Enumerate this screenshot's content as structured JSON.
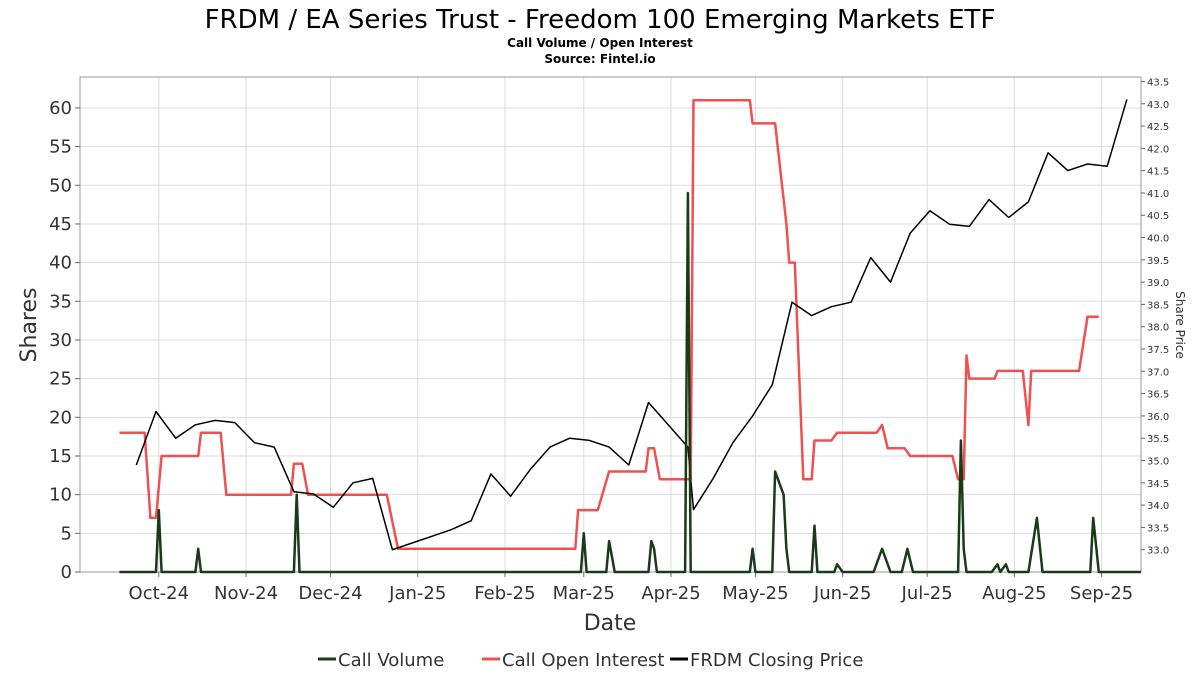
{
  "chart_data": {
    "type": "line",
    "title": "FRDM / EA Series Trust - Freedom 100 Emerging Markets ETF",
    "subtitle": "Call Volume / Open Interest",
    "source": "Source: Fintel.io",
    "xlabel": "Date",
    "ylabel": "Shares",
    "y2label": "Share Price",
    "x_tick_labels": [
      "Oct-24",
      "Nov-24",
      "Dec-24",
      "Jan-25",
      "Feb-25",
      "Mar-25",
      "Apr-25",
      "May-25",
      "Jun-25",
      "Jul-25",
      "Aug-25",
      "Sep-25"
    ],
    "x_tick_days": [
      14,
      45,
      75,
      106,
      137,
      165,
      196,
      226,
      257,
      287,
      318,
      349
    ],
    "x_range_days": [
      -14,
      363
    ],
    "ylim": [
      0,
      64
    ],
    "y_ticks": [
      0,
      5,
      10,
      15,
      20,
      25,
      30,
      35,
      40,
      45,
      50,
      55,
      60
    ],
    "y2lim": [
      32.5,
      43.6
    ],
    "y2_ticks": [
      "33.0",
      "33.5",
      "34.0",
      "34.5",
      "35.0",
      "35.5",
      "36.0",
      "36.5",
      "37.0",
      "37.5",
      "38.0",
      "38.5",
      "39.0",
      "39.5",
      "40.0",
      "40.5",
      "41.0",
      "41.5",
      "42.0",
      "42.5",
      "43.0",
      "43.5"
    ],
    "grid": true,
    "legend_position": "bottom",
    "series": [
      {
        "name": "Call Volume",
        "color": "#1a3a1a",
        "axis": "left",
        "points": [
          [
            0,
            0
          ],
          [
            13,
            0
          ],
          [
            14,
            8
          ],
          [
            15,
            0
          ],
          [
            27,
            0
          ],
          [
            28,
            3
          ],
          [
            29,
            0
          ],
          [
            62,
            0
          ],
          [
            63,
            10
          ],
          [
            64,
            0
          ],
          [
            164,
            0
          ],
          [
            165,
            5
          ],
          [
            166,
            0
          ],
          [
            173,
            0
          ],
          [
            174,
            4
          ],
          [
            176,
            0
          ],
          [
            188,
            0
          ],
          [
            189,
            4
          ],
          [
            190,
            3
          ],
          [
            191,
            0
          ],
          [
            201,
            0
          ],
          [
            202,
            49
          ],
          [
            203,
            0
          ],
          [
            224,
            0
          ],
          [
            225,
            3
          ],
          [
            226,
            0
          ],
          [
            232,
            0
          ],
          [
            233,
            13
          ],
          [
            236,
            10
          ],
          [
            237,
            3
          ],
          [
            238,
            0
          ],
          [
            246,
            0
          ],
          [
            247,
            6
          ],
          [
            248,
            0
          ],
          [
            254,
            0
          ],
          [
            255,
            1
          ],
          [
            257,
            0
          ],
          [
            268,
            0
          ],
          [
            271,
            3
          ],
          [
            274,
            0
          ],
          [
            278,
            0
          ],
          [
            280,
            3
          ],
          [
            282,
            0
          ],
          [
            298,
            0
          ],
          [
            299,
            17
          ],
          [
            300,
            3
          ],
          [
            301,
            0
          ],
          [
            310,
            0
          ],
          [
            312,
            1
          ],
          [
            313,
            0
          ],
          [
            315,
            1
          ],
          [
            316,
            0
          ],
          [
            320,
            0
          ],
          [
            323,
            0
          ],
          [
            326,
            7
          ],
          [
            328,
            0
          ],
          [
            345,
            0
          ],
          [
            346,
            7
          ],
          [
            348,
            0
          ],
          [
            363,
            0
          ]
        ]
      },
      {
        "name": "Call Open Interest",
        "color": "#f05050",
        "axis": "left",
        "points": [
          [
            0,
            18
          ],
          [
            9,
            18
          ],
          [
            11,
            7
          ],
          [
            13,
            7
          ],
          [
            15,
            15
          ],
          [
            28,
            15
          ],
          [
            29,
            18
          ],
          [
            36,
            18
          ],
          [
            38,
            10
          ],
          [
            61,
            10
          ],
          [
            62,
            14
          ],
          [
            65,
            14
          ],
          [
            67,
            10
          ],
          [
            95,
            10
          ],
          [
            99,
            3
          ],
          [
            162,
            3
          ],
          [
            163,
            8
          ],
          [
            170,
            8
          ],
          [
            174,
            13
          ],
          [
            187,
            13
          ],
          [
            188,
            16
          ],
          [
            190,
            16
          ],
          [
            192,
            12
          ],
          [
            203,
            12
          ],
          [
            204,
            61
          ],
          [
            224,
            61
          ],
          [
            225,
            58
          ],
          [
            233,
            58
          ],
          [
            237,
            45
          ],
          [
            238,
            40
          ],
          [
            240,
            40
          ],
          [
            243,
            12
          ],
          [
            246,
            12
          ],
          [
            247,
            17
          ],
          [
            253,
            17
          ],
          [
            255,
            18
          ],
          [
            269,
            18
          ],
          [
            271,
            19
          ],
          [
            273,
            16
          ],
          [
            279,
            16
          ],
          [
            281,
            15
          ],
          [
            296,
            15
          ],
          [
            298,
            12
          ],
          [
            300,
            12
          ],
          [
            301,
            28
          ],
          [
            302,
            25
          ],
          [
            311,
            25
          ],
          [
            312,
            26
          ],
          [
            321,
            26
          ],
          [
            323,
            19
          ],
          [
            324,
            26
          ],
          [
            341,
            26
          ],
          [
            344,
            33
          ],
          [
            348,
            33
          ]
        ]
      },
      {
        "name": "FRDM Closing Price",
        "color": "#000000",
        "axis": "right",
        "points": [
          [
            6,
            34.9
          ],
          [
            13,
            36.1
          ],
          [
            20,
            35.5
          ],
          [
            27,
            35.8
          ],
          [
            34,
            35.9
          ],
          [
            41,
            35.85
          ],
          [
            48,
            35.4
          ],
          [
            55,
            35.3
          ],
          [
            62,
            34.3
          ],
          [
            69,
            34.25
          ],
          [
            76,
            33.95
          ],
          [
            83,
            34.5
          ],
          [
            90,
            34.6
          ],
          [
            97,
            33.0
          ],
          [
            104,
            33.15
          ],
          [
            111,
            33.3
          ],
          [
            118,
            33.45
          ],
          [
            125,
            33.65
          ],
          [
            132,
            34.7
          ],
          [
            139,
            34.2
          ],
          [
            146,
            34.8
          ],
          [
            153,
            35.3
          ],
          [
            160,
            35.5
          ],
          [
            167,
            35.45
          ],
          [
            174,
            35.3
          ],
          [
            181,
            34.9
          ],
          [
            188,
            36.3
          ],
          [
            195,
            35.8
          ],
          [
            202,
            35.3
          ],
          [
            204,
            33.9
          ],
          [
            211,
            34.6
          ],
          [
            218,
            35.4
          ],
          [
            225,
            36.0
          ],
          [
            232,
            36.7
          ],
          [
            239,
            38.55
          ],
          [
            246,
            38.25
          ],
          [
            253,
            38.45
          ],
          [
            260,
            38.55
          ],
          [
            267,
            39.55
          ],
          [
            274,
            39.0
          ],
          [
            281,
            40.1
          ],
          [
            288,
            40.6
          ],
          [
            295,
            40.3
          ],
          [
            302,
            40.25
          ],
          [
            309,
            40.85
          ],
          [
            316,
            40.45
          ],
          [
            323,
            40.8
          ],
          [
            330,
            41.9
          ],
          [
            337,
            41.5
          ],
          [
            344,
            41.65
          ],
          [
            351,
            41.6
          ],
          [
            358,
            43.1
          ]
        ]
      }
    ]
  }
}
